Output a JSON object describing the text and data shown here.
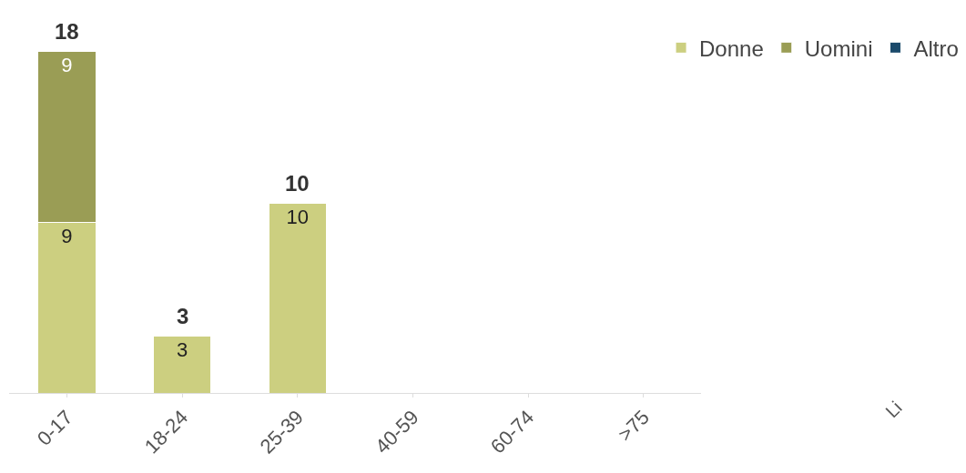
{
  "chart_data": {
    "type": "bar",
    "stacked": true,
    "data_labels": true,
    "legend": "top right",
    "categories": [
      "0-17",
      "18-24",
      "25-39",
      "40-59",
      "60-74",
      ">75"
    ],
    "series": [
      {
        "name": "Donne",
        "color": "#cccf80",
        "values": [
          9,
          3,
          10,
          null,
          null,
          null
        ]
      },
      {
        "name": "Uomini",
        "color": "#9a9d55",
        "values": [
          9,
          null,
          null,
          null,
          null,
          null
        ]
      },
      {
        "name": "Altro",
        "color": "#1b4a6b",
        "values": [
          null,
          null,
          null,
          null,
          null,
          null
        ]
      }
    ],
    "totals": [
      "18",
      "3",
      "10",
      null,
      null,
      null
    ],
    "annotations": [
      "Li"
    ]
  }
}
